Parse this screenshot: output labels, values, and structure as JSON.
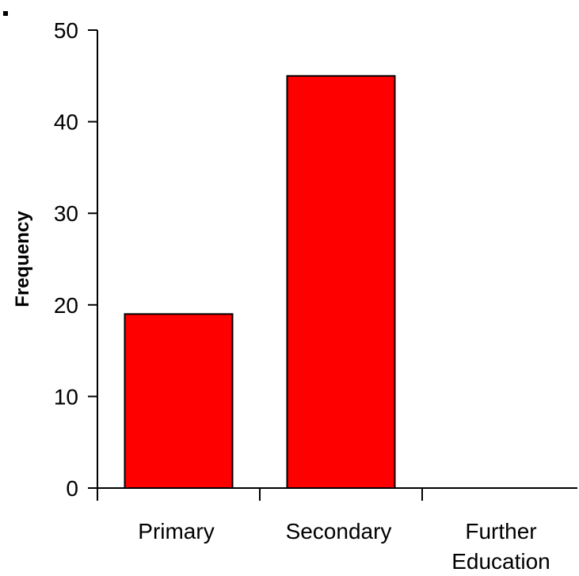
{
  "chart_data": {
    "type": "bar",
    "categories": [
      "Primary",
      "Secondary",
      "Further Education"
    ],
    "category_lines": [
      [
        "Primary"
      ],
      [
        "Secondary"
      ],
      [
        "Further",
        "Education"
      ]
    ],
    "values": [
      19,
      45,
      0
    ],
    "title": "",
    "xlabel": "",
    "ylabel": "Frequency",
    "ylim": [
      0,
      50
    ],
    "yticks": [
      0,
      10,
      20,
      30,
      40,
      50
    ],
    "grid": false,
    "bar_color": "#ff0000",
    "bar_edge_color": "#000000"
  }
}
